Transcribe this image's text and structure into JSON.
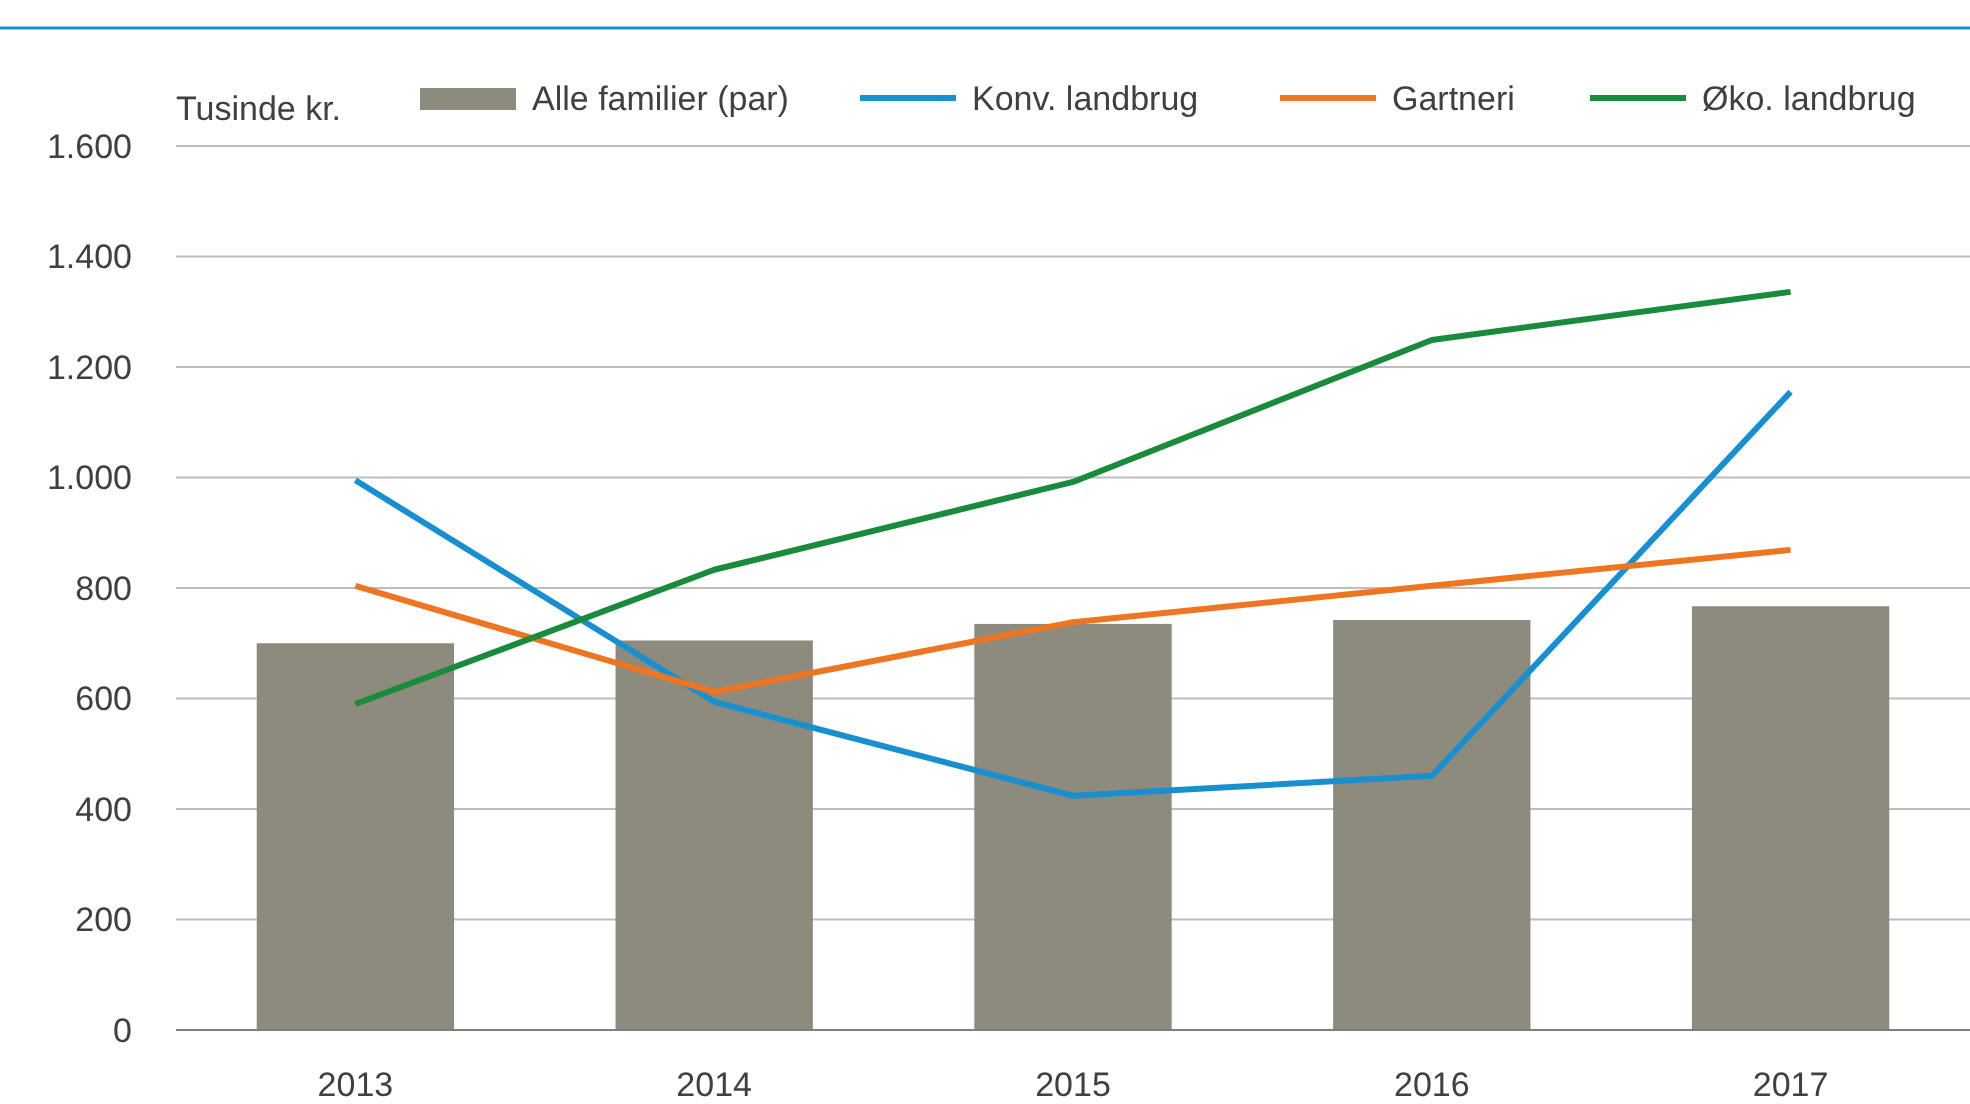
{
  "chart_data": {
    "type": "bar",
    "ylabel": "Tusinde kr.",
    "categories": [
      "2013",
      "2014",
      "2015",
      "2016",
      "2017"
    ],
    "series": [
      {
        "name": "Alle familier (par)",
        "color": "#8c8b7d",
        "values": [
          700,
          705,
          735,
          742,
          767
        ]
      },
      {
        "name": "Konv. landbrug",
        "type": "line",
        "color": "#1a8fd0",
        "values": [
          995,
          594,
          424,
          460,
          1155
        ]
      },
      {
        "name": "Gartneri",
        "type": "line",
        "color": "#ee7623",
        "values": [
          804,
          612,
          738,
          804,
          869
        ]
      },
      {
        "name": "Øko. landbrug",
        "type": "line",
        "color": "#1a8a3c",
        "values": [
          590,
          833,
          992,
          1249,
          1336
        ]
      }
    ],
    "ylim": [
      0,
      1600
    ],
    "yticks": [
      0,
      200,
      400,
      600,
      800,
      {
        "value": 1000,
        "label": "1.000"
      },
      {
        "value": 1200,
        "label": "1.200"
      },
      {
        "value": 1400,
        "label": "1.400"
      },
      {
        "value": 1600,
        "label": "1.600"
      }
    ],
    "grid": "y",
    "legend": "top",
    "marker": "none",
    "line_style": "solid"
  }
}
